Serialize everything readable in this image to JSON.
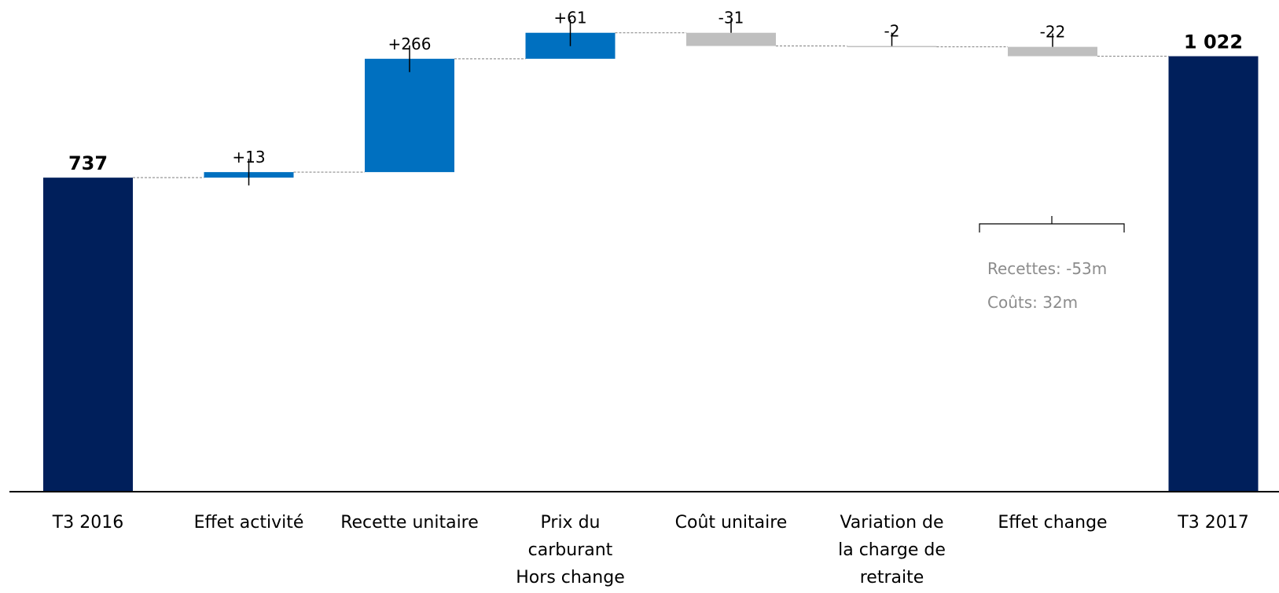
{
  "chart_data": {
    "type": "bar",
    "subtype": "waterfall",
    "title": "",
    "xlabel": "",
    "ylabel": "",
    "grid": false,
    "legend": "none",
    "ylim": [
      0,
      1050
    ],
    "categories": [
      [
        "T3 2016"
      ],
      [
        "Effet activité"
      ],
      [
        "Recette unitaire"
      ],
      [
        "Prix du",
        "carburant",
        "Hors change"
      ],
      [
        "Coût unitaire"
      ],
      [
        "Variation de",
        "la charge de",
        "retraite"
      ],
      [
        "Effet change"
      ],
      [
        "T3 2017"
      ]
    ],
    "values": [
      737,
      13,
      266,
      61,
      -31,
      -2,
      -22,
      1022
    ],
    "kinds": [
      "total",
      "delta",
      "delta",
      "delta",
      "delta",
      "delta",
      "delta",
      "total"
    ],
    "data_labels": [
      "737",
      "+13",
      "+266",
      "+61",
      "-31",
      "-2",
      "-22",
      "1 022"
    ],
    "annotation": {
      "lines": [
        "Recettes: -53m",
        "Coûts: 32m"
      ]
    }
  },
  "colors": {
    "total": "#001f5b",
    "positive": "#0070c0",
    "negative": "#bfbfbf",
    "connector": "#7f7f7f",
    "note": "#8c8c8c"
  }
}
